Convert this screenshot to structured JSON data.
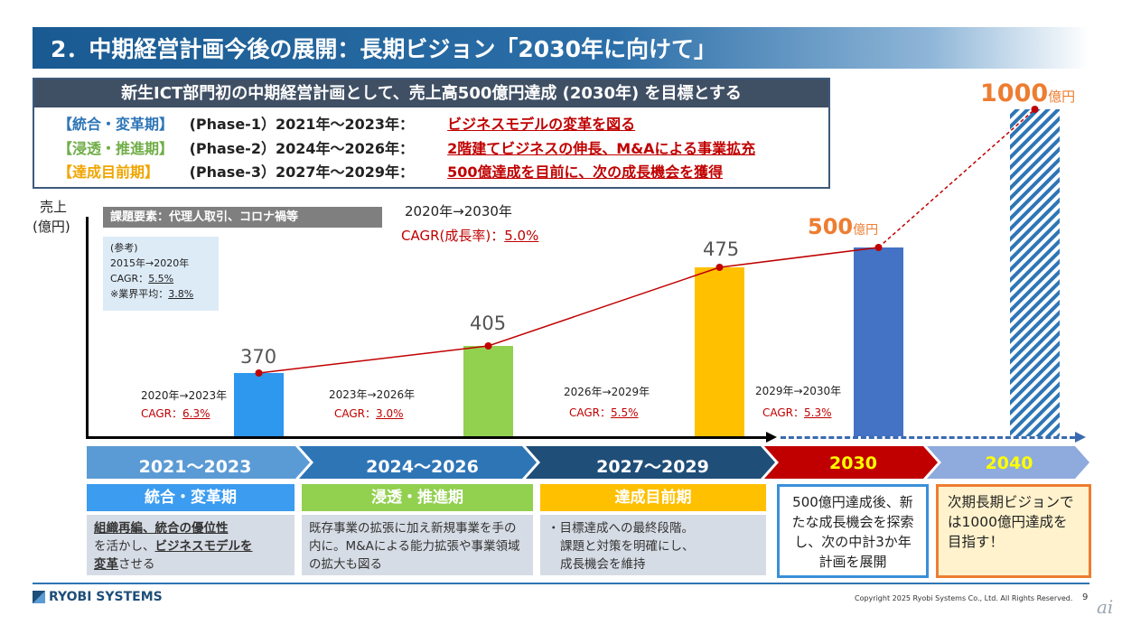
{
  "header": {
    "title": "2．中期経営計画今後の展開：長期ビジョン「2030年に向けて」"
  },
  "target": {
    "headline": "新生ICT部門初の中期経営計画として、売上高500億円達成 (2030年) を目標とする",
    "phases": [
      {
        "label": "【統合・変革期】",
        "period": "(Phase-1）2021年～2023年：",
        "goal": "ビジネスモデルの変革を図る",
        "color": "#2e75b6"
      },
      {
        "label": "【浸透・推進期】",
        "period": "(Phase-2）2024年～2026年：",
        "goal": "2階建てビジネスの伸長、M&Aによる事業拡充",
        "color": "#70ad47"
      },
      {
        "label": "【達成目前期】",
        "period": "(Phase-3）2027年～2029年：",
        "goal": "500億達成を目前に、次の成長機会を獲得",
        "color": "#f0a500"
      }
    ]
  },
  "axis": {
    "ylabel_1": "売上",
    "ylabel_2": "(億円)"
  },
  "issue_label": "課題要素：代理人取引、コロナ禍等",
  "reference": {
    "heading": "(参考)",
    "period": "2015年→2020年",
    "cagr_prefix": "CAGR：",
    "cagr_value": "5.5%",
    "industry_prefix": "※業界平均：",
    "industry_value": "3.8%"
  },
  "overall_cagr": {
    "period": "2020年→2030年",
    "label": "CAGR(成長率)：",
    "value": "5.0%"
  },
  "chart_data": {
    "type": "bar",
    "categories": [
      "2021～2023",
      "2024～2026",
      "2027～2029",
      "2030",
      "2040"
    ],
    "values": [
      370,
      405,
      475,
      500,
      1000
    ],
    "value_labels": [
      "370",
      "405",
      "475",
      "500",
      "1000"
    ],
    "unit": "億円",
    "bar_colors": [
      "#2e97ee",
      "#92d050",
      "#ffc000",
      "#4472c4",
      "#2e75b6"
    ],
    "ylabel": "売上(億円)",
    "growth_labels": [
      {
        "period": "2020年→2023年",
        "prefix": "CAGR：",
        "value": "6.3%"
      },
      {
        "period": "2023年→2026年",
        "prefix": "CAGR：",
        "value": "3.0%"
      },
      {
        "period": "2026年→2029年",
        "prefix": "CAGR：",
        "value": "5.5%"
      },
      {
        "period": "2029年→2030年",
        "prefix": "CAGR：",
        "value": "5.3%"
      }
    ]
  },
  "timeline": [
    {
      "label": "2021～2023",
      "color": "#5b9bd5"
    },
    {
      "label": "2024～2026",
      "color": "#2e75b6"
    },
    {
      "label": "2027～2029",
      "color": "#1f4e79"
    },
    {
      "label": "2030",
      "color": "#c00000"
    },
    {
      "label": "2040",
      "color": "#8faadc"
    }
  ],
  "phase_cards": [
    {
      "name": "統合・変革期",
      "color": "#3b9cf0",
      "desc_1": "組織再編、統合の優位性",
      "desc_2": "を活かし、",
      "desc_3": "ビジネスモデルを",
      "desc_4": "変革",
      "desc_5": "させる"
    },
    {
      "name": "浸透・推進期",
      "color": "#92d050",
      "desc": "既存事業の拡張に加え新規事業を手の内に。M&Aによる能力拡張や事業領域の拡大も図る"
    },
    {
      "name": "達成目前期",
      "color": "#ffc000",
      "desc_1": "・目標達成への最終段階。",
      "desc_2": "課題と対策を明確にし、",
      "desc_3": "成長機会を維持"
    }
  ],
  "box_2030": "500億円達成後、新たな成長機会を探索し、次の中計3か年計画を展開",
  "box_2040": "次期長期ビジョンでは1000億円達成を目指す！",
  "footer": {
    "logo": "RYOBI SYSTEMS",
    "copyright": "Copyright 2025 Ryobi Systems Co., Ltd. All Rights Reserved.",
    "page": "9",
    "watermark": "ai"
  }
}
